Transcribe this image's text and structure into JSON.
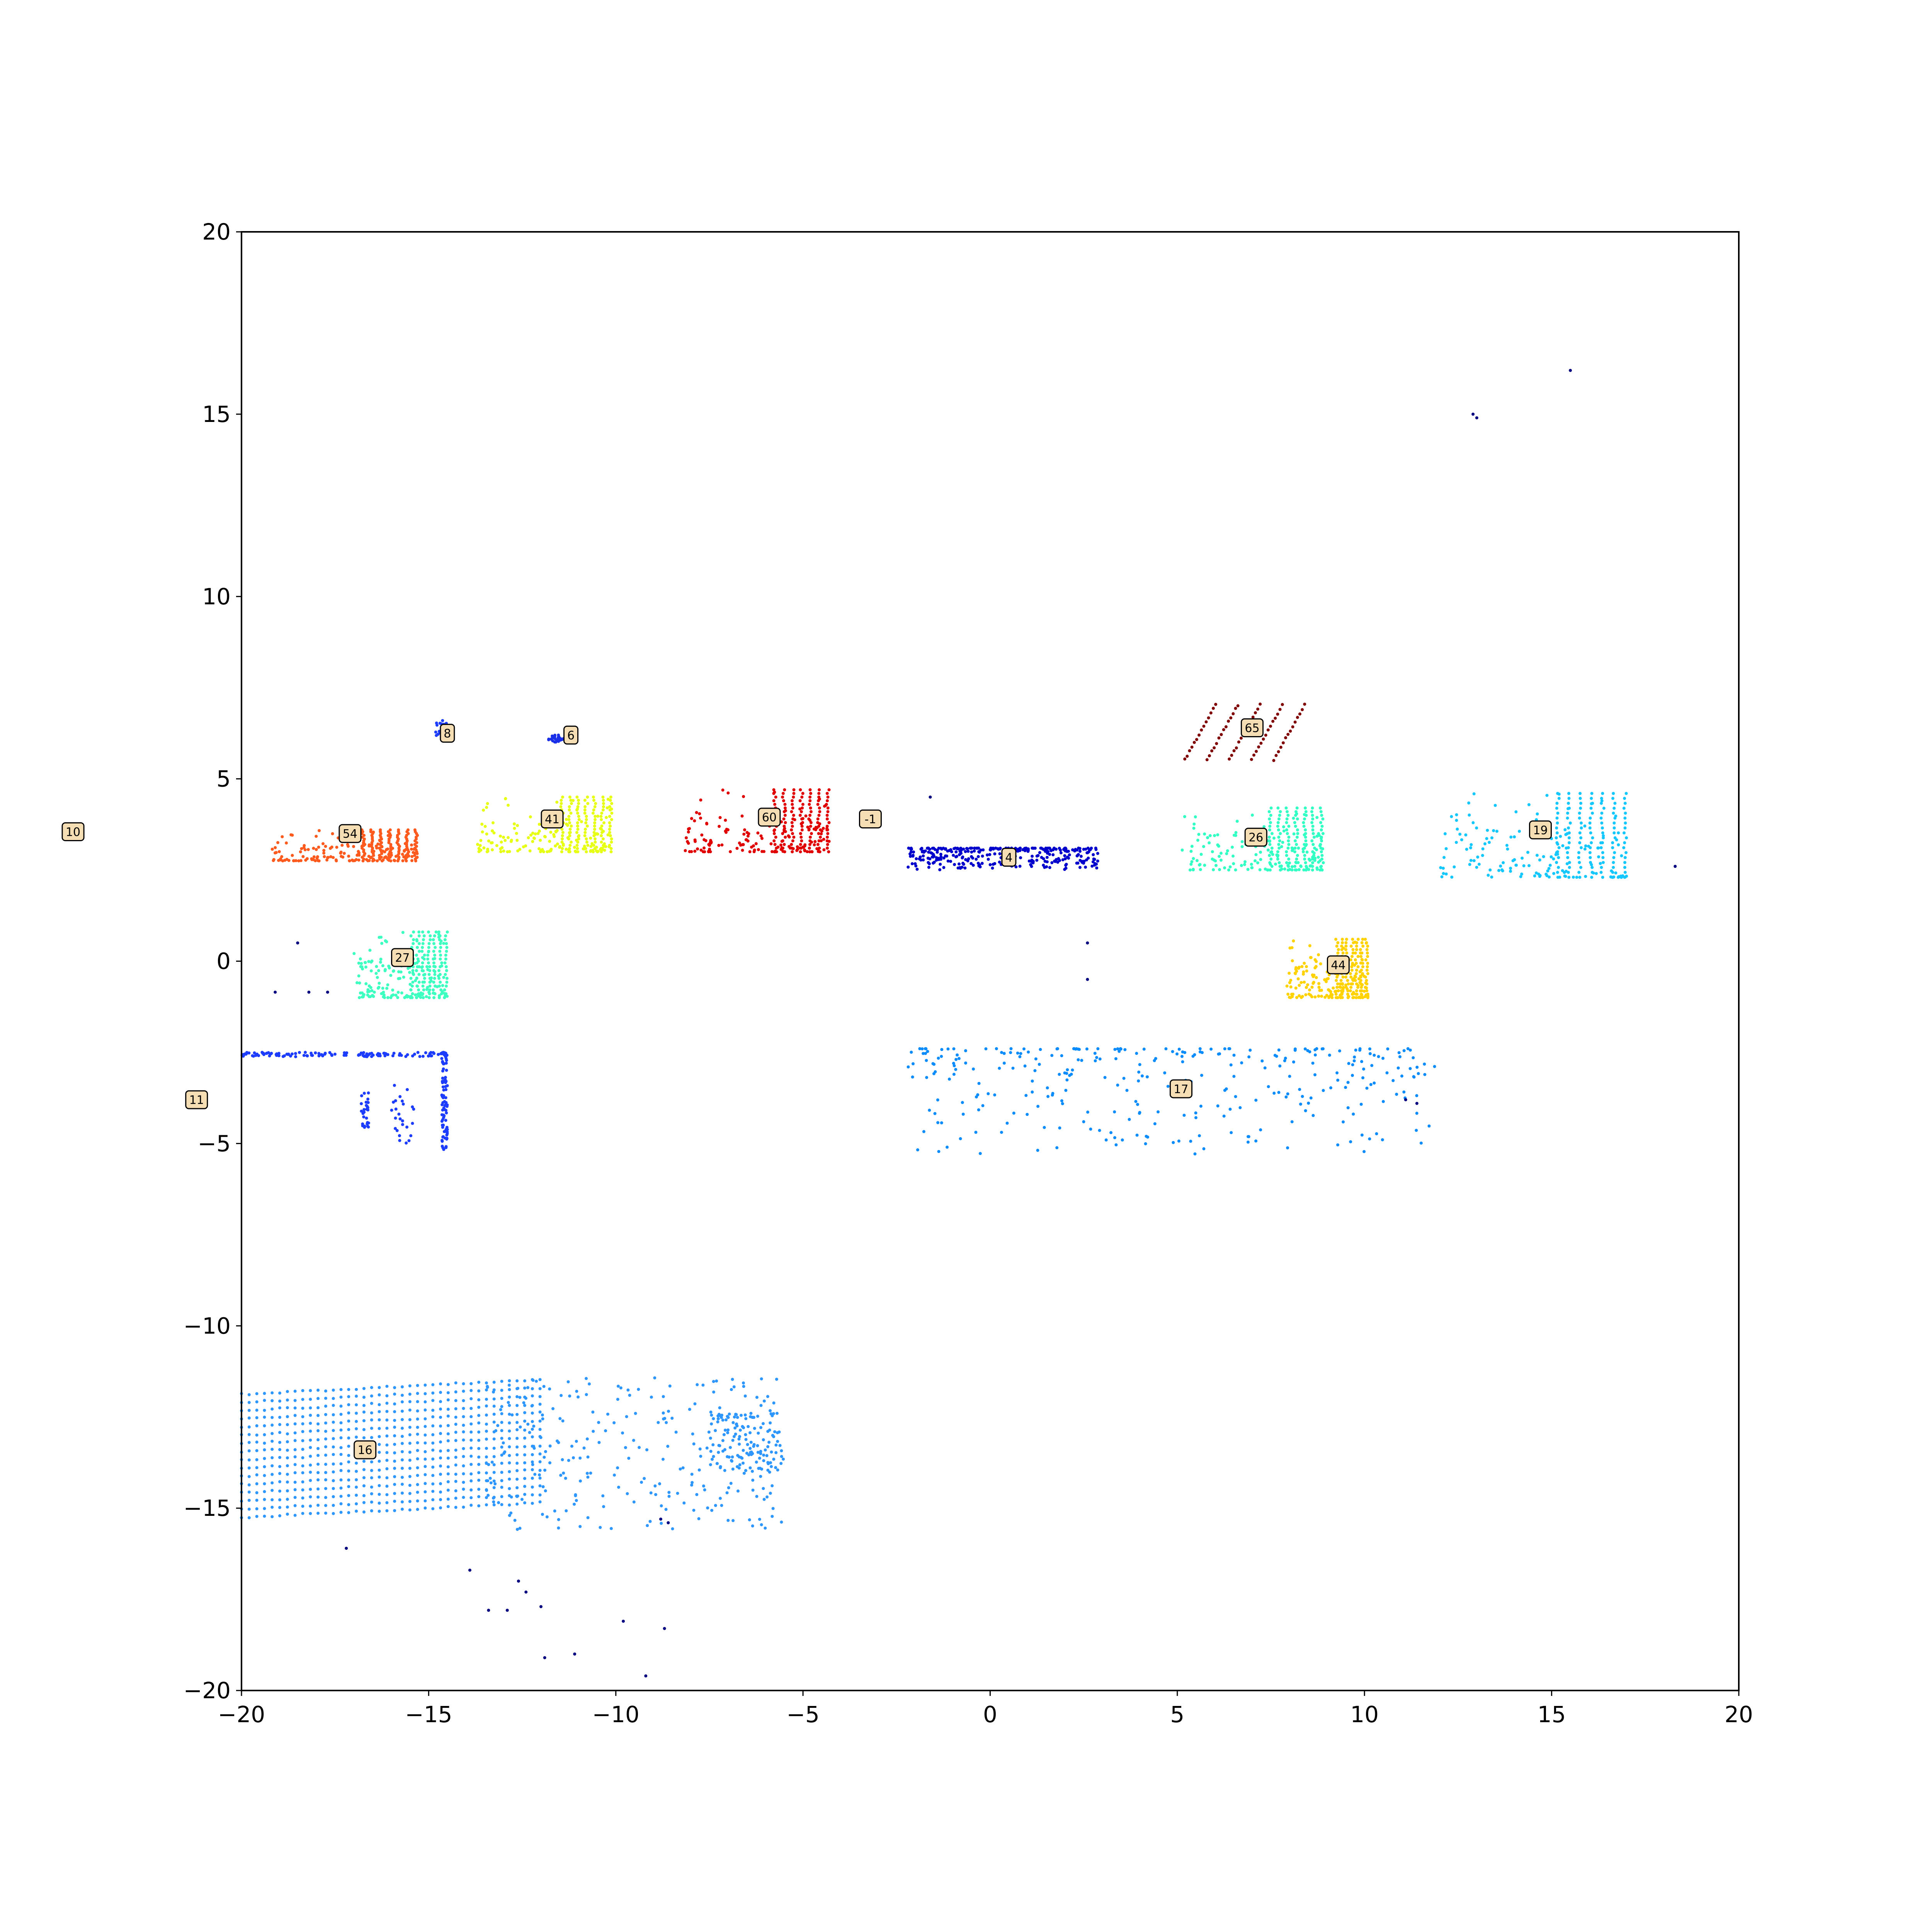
{
  "chart_data": {
    "type": "scatter",
    "title": "",
    "xlabel": "",
    "ylabel": "",
    "xlim": [
      -20,
      20
    ],
    "ylim": [
      -20,
      20
    ],
    "grid": false,
    "x_ticks": [
      "−20",
      "−15",
      "−10",
      "−5",
      "0",
      "5",
      "10",
      "15",
      "20"
    ],
    "x_tick_values": [
      -20,
      -15,
      -10,
      -5,
      0,
      5,
      10,
      15,
      20
    ],
    "y_ticks": [
      "20",
      "15",
      "10",
      "5",
      "0",
      "−5",
      "−10",
      "−15",
      "−20"
    ],
    "y_tick_values": [
      20,
      15,
      10,
      5,
      0,
      -5,
      -10,
      -15,
      -20
    ],
    "annotation_style": {
      "face": "#f5deb3",
      "edge": "#000000"
    },
    "clusters": [
      {
        "label": "10",
        "x": -24.5,
        "y": 3.55,
        "color": "#3060ff",
        "shape": "none",
        "points": []
      },
      {
        "label": "8",
        "x": -14.5,
        "y": 6.25,
        "color": "#1c3cff",
        "shape": "blob",
        "points": [
          [
            -14.85,
            6.0
          ],
          [
            -14.5,
            6.6
          ]
        ]
      },
      {
        "label": "6",
        "x": -11.2,
        "y": 6.2,
        "color": "#1a2fe8",
        "shape": "blob",
        "points": [
          [
            -11.8,
            6.2
          ],
          [
            -11.4,
            6.0
          ]
        ]
      },
      {
        "label": "54",
        "x": -17.1,
        "y": 3.5,
        "color": "#ff5a1e",
        "shape": "block",
        "points": [
          [
            -19.2,
            2.75
          ],
          [
            -15.3,
            3.6
          ]
        ]
      },
      {
        "label": "41",
        "x": -11.7,
        "y": 3.9,
        "color": "#e6ff14",
        "shape": "block",
        "points": [
          [
            -13.7,
            3.0
          ],
          [
            -10.1,
            4.5
          ]
        ]
      },
      {
        "label": "60",
        "x": -5.9,
        "y": 3.95,
        "color": "#e00000",
        "shape": "block",
        "points": [
          [
            -8.2,
            3.0
          ],
          [
            -4.3,
            4.7
          ]
        ]
      },
      {
        "label": "-1",
        "x": -3.2,
        "y": 3.9,
        "color": "#000080",
        "shape": "none",
        "points": []
      },
      {
        "label": "4",
        "x": 0.5,
        "y": 2.85,
        "color": "#0000cd",
        "shape": "bar",
        "points": [
          [
            -2.2,
            2.5
          ],
          [
            2.9,
            3.1
          ]
        ]
      },
      {
        "label": "65",
        "x": 7.0,
        "y": 6.4,
        "color": "#800000",
        "shape": "diag",
        "points": [
          [
            5.2,
            5.5
          ],
          [
            8.5,
            7.0
          ]
        ]
      },
      {
        "label": "26",
        "x": 7.1,
        "y": 3.4,
        "color": "#32ffc3",
        "shape": "block",
        "points": [
          [
            5.1,
            2.5
          ],
          [
            8.9,
            4.2
          ]
        ]
      },
      {
        "label": "19",
        "x": 14.7,
        "y": 3.6,
        "color": "#14c8ff",
        "shape": "block",
        "points": [
          [
            12.0,
            2.3
          ],
          [
            17.0,
            4.6
          ]
        ]
      },
      {
        "label": "27",
        "x": -15.7,
        "y": 0.1,
        "color": "#3cffc0",
        "shape": "block",
        "points": [
          [
            -17.0,
            -1.0
          ],
          [
            -14.5,
            0.8
          ]
        ]
      },
      {
        "label": "44",
        "x": 9.3,
        "y": -0.1,
        "color": "#ffd200",
        "shape": "block",
        "points": [
          [
            7.9,
            -1.0
          ],
          [
            10.1,
            0.6
          ]
        ]
      },
      {
        "label": "11",
        "x": -21.2,
        "y": -3.8,
        "color": "#1c3cff",
        "shape": "lshape",
        "points": [
          [
            -20.0,
            -5.2
          ],
          [
            -14.5,
            -2.5
          ]
        ]
      },
      {
        "label": "17",
        "x": 5.1,
        "y": -3.5,
        "color": "#0a8cff",
        "shape": "bar",
        "points": [
          [
            -2.2,
            -5.3
          ],
          [
            11.9,
            -2.4
          ]
        ]
      },
      {
        "label": "16",
        "x": -16.7,
        "y": -13.4,
        "color": "#2d96ff",
        "shape": "lines",
        "points": [
          [
            -20.0,
            -16.0
          ],
          [
            -5.5,
            -11.2
          ]
        ]
      }
    ],
    "outliers": [
      [
        12.9,
        15.0
      ],
      [
        13.0,
        14.9
      ],
      [
        15.5,
        16.2
      ],
      [
        18.3,
        2.6
      ],
      [
        -1.6,
        4.5
      ],
      [
        2.6,
        0.5
      ],
      [
        2.6,
        -0.5
      ],
      [
        -19.1,
        -0.85
      ],
      [
        -18.2,
        -0.85
      ],
      [
        -17.7,
        -0.85
      ],
      [
        -18.5,
        0.5
      ],
      [
        -17.2,
        -16.1
      ],
      [
        -13.9,
        -16.7
      ],
      [
        -13.4,
        -17.8
      ],
      [
        -12.9,
        -17.8
      ],
      [
        -12.6,
        -17.0
      ],
      [
        -12.4,
        -17.3
      ],
      [
        -12.0,
        -17.7
      ],
      [
        -11.9,
        -19.1
      ],
      [
        -11.1,
        -19.0
      ],
      [
        -9.8,
        -18.1
      ],
      [
        -8.7,
        -18.3
      ],
      [
        -9.2,
        -19.6
      ],
      [
        -8.8,
        -15.3
      ],
      [
        -8.6,
        -15.4
      ],
      [
        11.1,
        -3.8
      ],
      [
        11.4,
        -3.9
      ]
    ]
  }
}
